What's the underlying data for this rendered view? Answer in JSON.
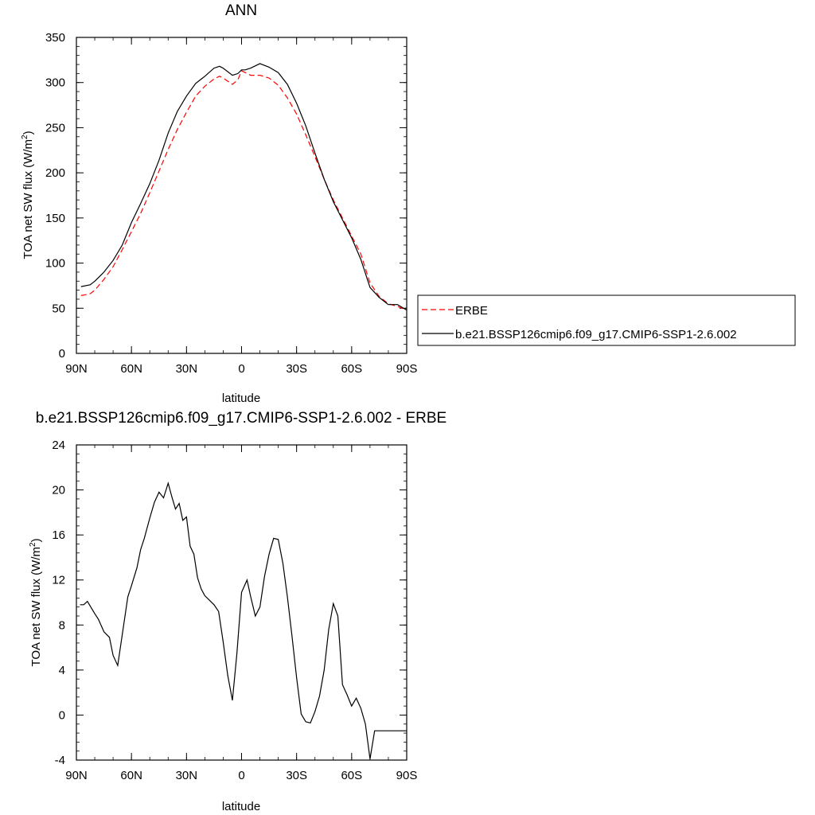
{
  "chart_data": [
    {
      "type": "line",
      "title": "ANN",
      "xlabel": "latitude",
      "ylabel": "TOA net SW flux (W/m",
      "ylabel_sup": "2",
      "ylabel_end": ")",
      "xlim": [
        90,
        -90
      ],
      "ylim": [
        0,
        350
      ],
      "x_ticks": [
        90,
        60,
        30,
        0,
        -30,
        -60,
        -90
      ],
      "x_tick_labels": [
        "90N",
        "60N",
        "30N",
        "0",
        "30S",
        "60S",
        "90S"
      ],
      "y_ticks": [
        0,
        50,
        100,
        150,
        200,
        250,
        300,
        350
      ],
      "y_tick_labels": [
        "0",
        "50",
        "100",
        "150",
        "200",
        "250",
        "300",
        "350"
      ],
      "grid": false,
      "legend_position": "right",
      "series": [
        {
          "name": "ERBE",
          "color": "#ff0000",
          "dash": "dashed",
          "x": [
            87.5,
            82.5,
            80,
            75,
            70,
            65,
            60,
            55,
            50,
            45,
            40,
            35,
            30,
            25,
            20,
            15,
            12,
            10,
            5,
            2,
            0,
            -2,
            -5,
            -10,
            -15,
            -20,
            -25,
            -30,
            -35,
            -40,
            -45,
            -50,
            -55,
            -60,
            -65,
            -70,
            -75,
            -80,
            -85,
            -90
          ],
          "y": [
            64,
            66,
            70,
            82,
            96,
            115,
            135,
            155,
            178,
            202,
            226,
            248,
            267,
            285,
            296,
            304,
            307,
            305,
            298,
            303,
            313,
            311,
            308,
            308,
            305,
            297,
            283,
            265,
            242,
            218,
            193,
            170,
            150,
            130,
            110,
            78,
            63,
            55,
            52,
            48
          ]
        },
        {
          "name": "b.e21.BSSP126cmip6.f09_g17.CMIP6-SSP1-2.6.002",
          "color": "#000000",
          "dash": "solid",
          "x": [
            87.5,
            82.5,
            80,
            75,
            70,
            65,
            60,
            55,
            50,
            45,
            40,
            35,
            30,
            25,
            20,
            15,
            12,
            10,
            5,
            2,
            0,
            -2,
            -5,
            -10,
            -15,
            -20,
            -25,
            -30,
            -35,
            -40,
            -45,
            -50,
            -55,
            -60,
            -65,
            -70,
            -75,
            -80,
            -85,
            -90
          ],
          "y": [
            74,
            76,
            80,
            90,
            103,
            120,
            145,
            166,
            188,
            214,
            244,
            268,
            285,
            299,
            307,
            316,
            318,
            316,
            308,
            310,
            314,
            314,
            316,
            321,
            317,
            311,
            298,
            277,
            252,
            222,
            193,
            168,
            148,
            128,
            104,
            73,
            62,
            54,
            54,
            48
          ]
        }
      ]
    },
    {
      "type": "line",
      "title": "b.e21.BSSP126cmip6.f09_g17.CMIP6-SSP1-2.6.002 - ERBE",
      "xlabel": "latitude",
      "ylabel": "TOA net SW flux (W/m",
      "ylabel_sup": "2",
      "ylabel_end": ")",
      "xlim": [
        90,
        -90
      ],
      "ylim": [
        -4,
        24
      ],
      "x_ticks": [
        90,
        60,
        30,
        0,
        -30,
        -60,
        -90
      ],
      "x_tick_labels": [
        "90N",
        "60N",
        "30N",
        "0",
        "30S",
        "60S",
        "90S"
      ],
      "y_ticks": [
        -4,
        0,
        4,
        8,
        12,
        16,
        20,
        24
      ],
      "y_tick_labels": [
        "-4",
        "0",
        "4",
        "8",
        "12",
        "16",
        "20",
        "24"
      ],
      "grid": false,
      "series": [
        {
          "color": "#000000",
          "dash": "solid",
          "x": [
            88,
            86,
            84,
            80,
            78,
            75,
            72,
            70,
            67.5,
            62,
            60,
            57,
            55,
            53,
            50,
            47.5,
            45,
            42.5,
            40,
            38,
            36,
            34,
            32,
            30,
            28,
            26,
            24,
            22,
            20,
            17.5,
            15,
            12.5,
            10,
            7.5,
            5,
            2.5,
            0,
            -3,
            -5,
            -7.5,
            -10,
            -12.5,
            -15,
            -17.5,
            -20,
            -22.5,
            -25,
            -27.5,
            -30,
            -32.5,
            -35,
            -37.5,
            -40,
            -42.5,
            -45,
            -47.5,
            -50,
            -52.5,
            -55,
            -57.5,
            -60,
            -62.5,
            -65,
            -67.5,
            -70,
            -72.5,
            -75,
            -77.5,
            -80,
            -82.5,
            -85,
            -87.5,
            -90
          ],
          "y": [
            9.8,
            9.8,
            10.1,
            9.0,
            8.5,
            7.4,
            6.9,
            5.3,
            4.4,
            10.5,
            11.5,
            13.1,
            14.7,
            15.7,
            17.5,
            18.9,
            19.8,
            19.3,
            20.6,
            19.4,
            18.3,
            18.8,
            17.3,
            17.6,
            15.0,
            14.3,
            12.2,
            11.2,
            10.6,
            10.2,
            9.8,
            9.2,
            6.5,
            3.5,
            1.3,
            5.5,
            10.9,
            12.0,
            10.5,
            8.8,
            9.6,
            12.3,
            14.3,
            15.7,
            15.6,
            13.5,
            10.5,
            7.0,
            3.3,
            0.1,
            -0.6,
            -0.7,
            0.3,
            1.7,
            4.0,
            7.6,
            9.9,
            8.8,
            2.7,
            1.8,
            0.8,
            1.5,
            0.6,
            -0.8,
            -3.9,
            -1.4,
            -1.4,
            -1.4,
            -1.4,
            -1.4,
            -1.4,
            -1.4,
            -1.4
          ]
        }
      ]
    }
  ]
}
